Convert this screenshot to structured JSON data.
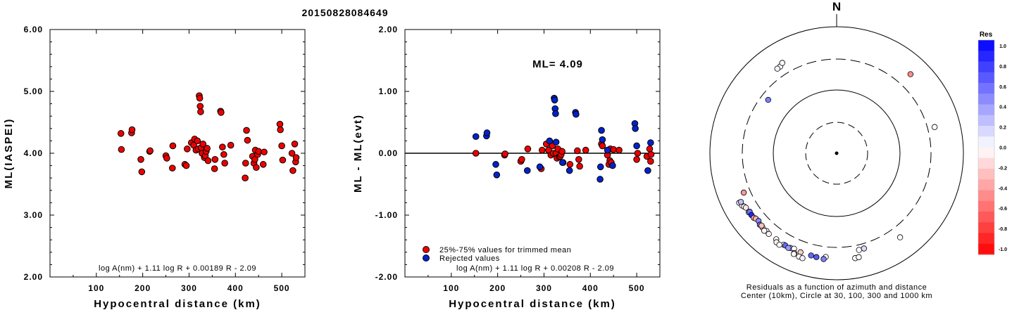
{
  "title": "20150828084649",
  "colors": {
    "accepted": "#ee0000",
    "rejected": "#0022cc",
    "axis": "#000000"
  },
  "chart_data": [
    {
      "type": "scatter",
      "xlabel": "Hypocentral distance (km)",
      "ylabel": "ML(IASPEI)",
      "xlim": [
        0,
        550
      ],
      "ylim": [
        2.0,
        6.0
      ],
      "x_ticks": [
        100,
        200,
        300,
        400,
        500
      ],
      "y_ticks": [
        2.0,
        3.0,
        4.0,
        5.0,
        6.0
      ],
      "y_tick_labels": [
        "2.00",
        "3.00",
        "4.00",
        "5.00",
        "6.00"
      ],
      "x_tick_labels": [
        "100",
        "200",
        "300",
        "400",
        "500"
      ],
      "formula": "log A(nm) + 1.11 log R + 0.00189 R - 2.09",
      "series": [
        {
          "color": "#ee0000",
          "points": [
            [
              153,
              4.32
            ],
            [
              154,
              4.06
            ],
            [
              176,
              4.33
            ],
            [
              177,
              4.38
            ],
            [
              196,
              3.9
            ],
            [
              198,
              3.7
            ],
            [
              215,
              4.03
            ],
            [
              216,
              4.04
            ],
            [
              250,
              3.96
            ],
            [
              252,
              3.92
            ],
            [
              264,
              3.76
            ],
            [
              265,
              4.12
            ],
            [
              291,
              3.82
            ],
            [
              294,
              3.8
            ],
            [
              296,
              4.07
            ],
            [
              305,
              4.17
            ],
            [
              310,
              4.13
            ],
            [
              312,
              4.23
            ],
            [
              315,
              4.05
            ],
            [
              318,
              4.2
            ],
            [
              320,
              4.07
            ],
            [
              322,
              4.93
            ],
            [
              323,
              4.89
            ],
            [
              324,
              4.76
            ],
            [
              325,
              4.67
            ],
            [
              326,
              4.09
            ],
            [
              328,
              4.0
            ],
            [
              330,
              4.15
            ],
            [
              333,
              3.93
            ],
            [
              335,
              3.96
            ],
            [
              337,
              4.03
            ],
            [
              339,
              4.08
            ],
            [
              341,
              3.88
            ],
            [
              355,
              3.75
            ],
            [
              356,
              3.9
            ],
            [
              368,
              4.68
            ],
            [
              369,
              4.66
            ],
            [
              372,
              4.1
            ],
            [
              375,
              3.98
            ],
            [
              377,
              3.84
            ],
            [
              390,
              4.13
            ],
            [
              421,
              3.6
            ],
            [
              422,
              3.84
            ],
            [
              424,
              4.37
            ],
            [
              426,
              4.21
            ],
            [
              437,
              3.95
            ],
            [
              440,
              3.84
            ],
            [
              442,
              3.9
            ],
            [
              443,
              4.05
            ],
            [
              445,
              3.77
            ],
            [
              448,
              3.98
            ],
            [
              450,
              4.03
            ],
            [
              460,
              3.82
            ],
            [
              462,
              4.02
            ],
            [
              496,
              4.47
            ],
            [
              497,
              4.38
            ],
            [
              500,
              4.12
            ],
            [
              502,
              3.89
            ],
            [
              522,
              4.0
            ],
            [
              524,
              3.72
            ],
            [
              528,
              4.15
            ],
            [
              530,
              3.86
            ],
            [
              531,
              3.93
            ]
          ]
        }
      ]
    },
    {
      "type": "scatter",
      "xlabel": "Hypocentral distance (km)",
      "ylabel": "ML - ML(evt)",
      "xlim": [
        0,
        550
      ],
      "ylim": [
        -2.0,
        2.0
      ],
      "x_ticks": [
        100,
        200,
        300,
        400,
        500
      ],
      "y_ticks": [
        -2.0,
        -1.0,
        0.0,
        1.0,
        2.0
      ],
      "y_tick_labels": [
        "-2.00",
        "-1.00",
        "0.00",
        "1.00",
        "2.00"
      ],
      "x_tick_labels": [
        "100",
        "200",
        "300",
        "400",
        "500"
      ],
      "annotation": "ML= 4.09",
      "legend": [
        "25%-75% values for trimmed mean",
        "Rejected values"
      ],
      "formula": "log A(nm) + 1.11 log R + 0.00208 R - 2.09",
      "reference_line": 0.0,
      "series": [
        {
          "color": "#ee0000",
          "points": [
            [
              153,
              0.0
            ],
            [
              215,
              -0.03
            ],
            [
              216,
              -0.01
            ],
            [
              250,
              -0.13
            ],
            [
              252,
              -0.1
            ],
            [
              265,
              0.07
            ],
            [
              294,
              -0.25
            ],
            [
              296,
              0.05
            ],
            [
              305,
              0.15
            ],
            [
              310,
              0.05
            ],
            [
              315,
              -0.03
            ],
            [
              318,
              0.12
            ],
            [
              320,
              0.0
            ],
            [
              326,
              0.0
            ],
            [
              328,
              -0.08
            ],
            [
              330,
              0.07
            ],
            [
              333,
              -0.06
            ],
            [
              335,
              -0.05
            ],
            [
              337,
              -0.02
            ],
            [
              339,
              0.03
            ],
            [
              341,
              -0.15
            ],
            [
              356,
              -0.18
            ],
            [
              372,
              0.04
            ],
            [
              375,
              -0.1
            ],
            [
              377,
              -0.21
            ],
            [
              390,
              0.05
            ],
            [
              424,
              0.15
            ],
            [
              426,
              0.12
            ],
            [
              437,
              -0.03
            ],
            [
              440,
              -0.18
            ],
            [
              442,
              -0.12
            ],
            [
              443,
              0.07
            ],
            [
              445,
              -0.15
            ],
            [
              450,
              0.06
            ],
            [
              462,
              0.05
            ],
            [
              500,
              -0.1
            ],
            [
              502,
              0.0
            ],
            [
              522,
              -0.05
            ],
            [
              528,
              0.07
            ],
            [
              530,
              -0.13
            ],
            [
              531,
              -0.02
            ]
          ]
        },
        {
          "color": "#0022cc",
          "points": [
            [
              153,
              0.27
            ],
            [
              176,
              0.28
            ],
            [
              177,
              0.33
            ],
            [
              196,
              -0.18
            ],
            [
              198,
              -0.35
            ],
            [
              264,
              -0.28
            ],
            [
              291,
              -0.22
            ],
            [
              312,
              0.2
            ],
            [
              322,
              0.89
            ],
            [
              323,
              0.86
            ],
            [
              324,
              0.72
            ],
            [
              325,
              0.64
            ],
            [
              326,
              0.18
            ],
            [
              340,
              -0.15
            ],
            [
              355,
              -0.28
            ],
            [
              368,
              0.66
            ],
            [
              369,
              0.63
            ],
            [
              421,
              -0.42
            ],
            [
              422,
              -0.22
            ],
            [
              424,
              0.37
            ],
            [
              426,
              0.22
            ],
            [
              437,
              0.05
            ],
            [
              448,
              -0.2
            ],
            [
              496,
              0.48
            ],
            [
              497,
              0.4
            ],
            [
              500,
              0.12
            ],
            [
              524,
              -0.28
            ],
            [
              530,
              0.17
            ]
          ]
        }
      ]
    },
    {
      "type": "scatter",
      "subtype": "polar",
      "north_label": "N",
      "caption_line1": "Residuals as a function of azimuth and distance",
      "caption_line2": "Center (10km), Circle at 30, 100, 300 and 1000 km",
      "rings_km": [
        30,
        100,
        300,
        1000
      ],
      "colorbar_title": "Res",
      "colorbar_ticks": [
        "1.0",
        "0.8",
        "0.6",
        "0.4",
        "0.2",
        "0.0",
        "-0.2",
        "-0.4",
        "-0.6",
        "-0.8",
        "-1.0"
      ],
      "points": [
        {
          "az": 327,
          "dist": 423,
          "res": 0.0
        },
        {
          "az": 325,
          "dist": 420,
          "res": 0.05
        },
        {
          "az": 329,
          "dist": 455,
          "res": 0.0
        },
        {
          "az": 43,
          "dist": 503,
          "res": -0.45
        },
        {
          "az": 75,
          "dist": 390,
          "res": 0.0
        },
        {
          "az": 308,
          "dist": 230,
          "res": 0.5
        },
        {
          "az": 243,
          "dist": 524,
          "res": 0.05
        },
        {
          "az": 241,
          "dist": 500,
          "res": 0.0
        },
        {
          "az": 243,
          "dist": 488,
          "res": 0.25
        },
        {
          "az": 240,
          "dist": 477,
          "res": 0.0
        },
        {
          "az": 239,
          "dist": 460,
          "res": -0.1
        },
        {
          "az": 236,
          "dist": 462,
          "res": 0.25
        },
        {
          "az": 236,
          "dist": 443,
          "res": 0.55
        },
        {
          "az": 234,
          "dist": 450,
          "res": 0.85
        },
        {
          "az": 232,
          "dist": 447,
          "res": -0.35
        },
        {
          "az": 231,
          "dist": 430,
          "res": -0.3
        },
        {
          "az": 229,
          "dist": 420,
          "res": 0.45
        },
        {
          "az": 227,
          "dist": 446,
          "res": 0.55
        },
        {
          "az": 225,
          "dist": 445,
          "res": -0.15
        },
        {
          "az": 222,
          "dist": 442,
          "res": -0.05
        },
        {
          "az": 247,
          "dist": 383,
          "res": -0.4
        },
        {
          "az": 226,
          "dist": 435,
          "res": -0.25
        },
        {
          "az": 223,
          "dist": 465,
          "res": 0.0
        },
        {
          "az": 220,
          "dist": 455,
          "res": -0.05
        },
        {
          "az": 215,
          "dist": 450,
          "res": 0.0
        },
        {
          "az": 210,
          "dist": 460,
          "res": 0.0
        },
        {
          "az": 206,
          "dist": 455,
          "res": 0.3
        },
        {
          "az": 204,
          "dist": 440,
          "res": 0.0
        },
        {
          "az": 200,
          "dist": 455,
          "res": -0.2
        },
        {
          "az": 186,
          "dist": 437,
          "res": 0.0
        },
        {
          "az": 170,
          "dist": 475,
          "res": 0.0
        },
        {
          "az": 168,
          "dist": 470,
          "res": 0.0
        },
        {
          "az": 167,
          "dist": 362,
          "res": 0.0
        },
        {
          "az": 164,
          "dist": 360,
          "res": 0.15
        },
        {
          "az": 143,
          "dist": 453,
          "res": 0.0
        },
        {
          "az": 194,
          "dist": 455,
          "res": 0.6
        },
        {
          "az": 191,
          "dist": 462,
          "res": 0.65
        },
        {
          "az": 187,
          "dist": 476,
          "res": 0.5
        },
        {
          "az": 209,
          "dist": 458,
          "res": 0.6
        },
        {
          "az": 207,
          "dist": 470,
          "res": 0.4
        },
        {
          "az": 214,
          "dist": 490,
          "res": -0.05
        },
        {
          "az": 212,
          "dist": 500,
          "res": 0.0
        },
        {
          "az": 203,
          "dist": 510,
          "res": -0.15
        },
        {
          "az": 203,
          "dist": 530,
          "res": 0.0
        },
        {
          "az": 200,
          "dist": 540,
          "res": 0.0
        },
        {
          "az": 198,
          "dist": 548,
          "res": 0.05
        }
      ]
    }
  ]
}
